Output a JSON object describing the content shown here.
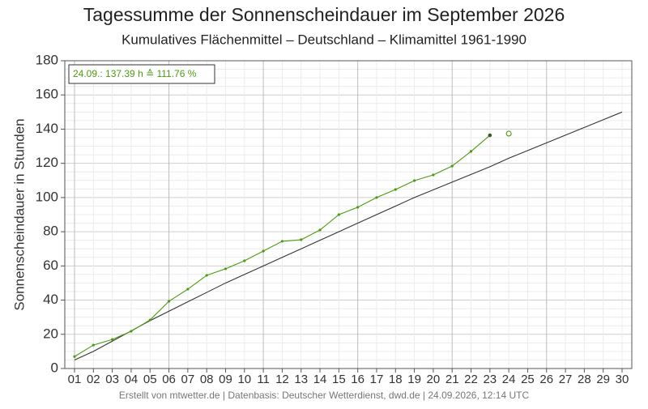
{
  "chart_data": {
    "type": "line",
    "title": "Tagessumme der Sonnenscheindauer im September 2026",
    "subtitle": "Kumulatives Flächenmittel – Deutschland – Klimamittel 1961-1990",
    "y_label": "Sonnenscheindauer in Stunden",
    "annotation": "24.09.: 137.39 h ≙ 111.76 %",
    "footer": "Erstellt von mtwetter.de | Datenbasis: Deutscher Wetterdienst, dwd.de | 24.09.2026, 12:14 UTC",
    "categories": [
      "01",
      "02",
      "03",
      "04",
      "05",
      "06",
      "07",
      "08",
      "09",
      "10",
      "11",
      "12",
      "13",
      "14",
      "15",
      "16",
      "17",
      "18",
      "19",
      "20",
      "21",
      "22",
      "23",
      "24",
      "25",
      "26",
      "27",
      "28",
      "29",
      "30"
    ],
    "ylim": [
      0,
      180
    ],
    "yticks": [
      0,
      20,
      40,
      60,
      80,
      100,
      120,
      140,
      160,
      180
    ],
    "grid": true,
    "series": [
      {
        "color": "#333333",
        "marker": "none",
        "values": [
          5,
          10,
          16,
          22,
          28,
          33.5,
          39,
          44.5,
          50,
          55,
          60,
          65,
          70,
          75,
          80,
          85,
          90,
          95,
          100,
          104.5,
          109,
          113.5,
          118,
          123,
          127.5,
          132,
          136.5,
          141,
          145.5,
          150
        ]
      },
      {
        "color": "#4c9a10",
        "marker": "dot",
        "values": [
          7,
          13.7,
          17,
          21.8,
          28.4,
          39.3,
          46.4,
          54.5,
          58.3,
          63,
          68.7,
          74.4,
          75.3,
          81,
          90,
          94.3,
          100,
          104.7,
          109.9,
          113.2,
          118.4,
          127,
          136.4,
          null,
          null,
          null,
          null,
          null,
          null,
          null
        ]
      },
      {
        "color": "#4c9a10",
        "marker": "open",
        "values": [
          null,
          null,
          null,
          null,
          null,
          null,
          null,
          null,
          null,
          null,
          null,
          null,
          null,
          null,
          null,
          null,
          null,
          null,
          null,
          null,
          null,
          null,
          null,
          137.39,
          null,
          null,
          null,
          null,
          null,
          null
        ]
      }
    ]
  }
}
